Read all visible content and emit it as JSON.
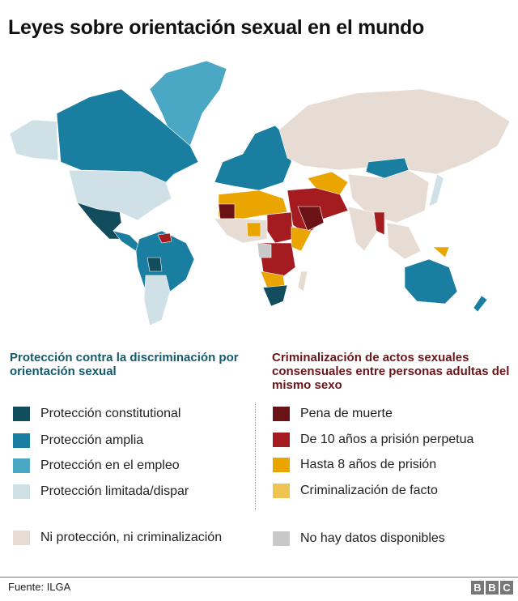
{
  "title": "Leyes sobre orientación sexual en el mundo",
  "colors": {
    "constitucional": "#124d5e",
    "amplia": "#1a7ea0",
    "empleo": "#4aa8c4",
    "limitada": "#cfe1e7",
    "ninguna": "#e6dcd3",
    "pena_muerte": "#6b1217",
    "diez_anos": "#a51c20",
    "ocho_anos": "#eba500",
    "facto": "#efc254",
    "sin_datos": "#c8c8c8"
  },
  "legend_left": {
    "heading": "Protección contra la discriminación por orientación sexual",
    "items": [
      {
        "label": "Protección constitutional",
        "color": "#124d5e"
      },
      {
        "label": "Protección amplia",
        "color": "#1a7ea0"
      },
      {
        "label": "Protección en el empleo",
        "color": "#4aa8c4"
      },
      {
        "label": "Protección limitada/dispar",
        "color": "#cfe1e7"
      }
    ],
    "neutral": {
      "label": "Ni protección, ni criminalización",
      "color": "#e6dcd3"
    }
  },
  "legend_right": {
    "heading": "Criminalización de actos sexuales consensuales entre personas adultas del mismo sexo",
    "items": [
      {
        "label": "Pena de muerte",
        "color": "#6b1217"
      },
      {
        "label": "De 10 años a prisión perpetua",
        "color": "#a51c20"
      },
      {
        "label": "Hasta 8 años de prisión",
        "color": "#eba500"
      },
      {
        "label": "Criminalización de facto",
        "color": "#efc254"
      }
    ],
    "neutral": {
      "label": "No hay datos disponibles",
      "color": "#c8c8c8"
    }
  },
  "footer": {
    "source": "Fuente: ILGA",
    "logo": [
      "B",
      "B",
      "C"
    ]
  }
}
